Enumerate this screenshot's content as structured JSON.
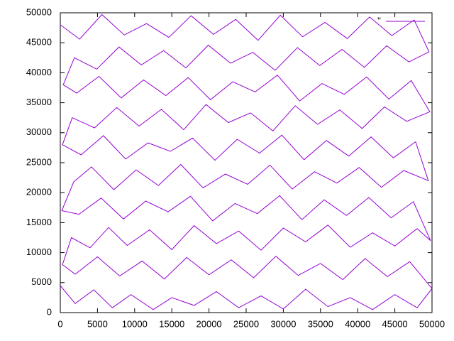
{
  "chart_data": {
    "type": "line",
    "x": [
      0,
      2000,
      4500,
      7000,
      9500,
      12500,
      15000,
      18000,
      21000,
      24000,
      27000,
      30000,
      33000,
      36000,
      39000,
      42000,
      45000,
      48000,
      50000,
      47000,
      44000,
      41000,
      38000,
      35000,
      32000,
      29000,
      26000,
      23000,
      20000,
      17000,
      14000,
      11000,
      8000,
      5000,
      2000,
      300,
      1500,
      4000,
      6500,
      9000,
      12000,
      15000,
      18000,
      21000,
      24000,
      27000,
      30000,
      33000,
      36000,
      39000,
      42000,
      45000,
      48000,
      49800,
      47500,
      44500,
      41500,
      38500,
      35500,
      32500,
      29500,
      26500,
      23500,
      20500,
      17500,
      14500,
      11500,
      8500,
      5500,
      2500,
      200,
      1800,
      4200,
      7200,
      10200,
      13200,
      16200,
      19200,
      22200,
      25200,
      28200,
      31200,
      34200,
      37200,
      40200,
      43200,
      46200,
      49500,
      47800,
      44800,
      41800,
      38800,
      35800,
      32800,
      29800,
      26800,
      23800,
      20800,
      17800,
      14800,
      11800,
      8800,
      5800,
      2800,
      300,
      1600,
      4600,
      7600,
      10600,
      13600,
      16600,
      19600,
      22600,
      25600,
      28600,
      31600,
      34600,
      37600,
      40600,
      43600,
      46600,
      49700,
      47200,
      44200,
      41200,
      38200,
      35200,
      32200,
      29200,
      26200,
      23200,
      20200,
      17200,
      14200,
      11200,
      8200,
      5200,
      2200,
      400,
      1900,
      4900,
      7900,
      10900,
      13900,
      16900,
      19900,
      22900,
      25900,
      28900,
      31900,
      34900,
      37900,
      40900,
      43900,
      46900,
      49600,
      47600,
      44600,
      41600,
      38600,
      35600,
      32600,
      29600,
      26600,
      23600,
      20600,
      17600,
      14600,
      11600,
      8600,
      5600,
      2600,
      0
    ],
    "series": [
      {
        "name": "''",
        "color": "#9400d3",
        "values": [
          4500,
          1500,
          3800,
          800,
          3000,
          500,
          2500,
          1200,
          3500,
          800,
          2800,
          600,
          3900,
          1000,
          2500,
          500,
          3000,
          800,
          4000,
          8500,
          6000,
          9000,
          5500,
          8200,
          6200,
          9400,
          5800,
          8800,
          6300,
          9200,
          5600,
          8600,
          6100,
          9300,
          6400,
          8000,
          12500,
          10800,
          14200,
          11200,
          13800,
          10500,
          14500,
          11500,
          13600,
          10400,
          14100,
          11800,
          14600,
          10900,
          13300,
          11100,
          14000,
          12000,
          18500,
          15800,
          19200,
          16200,
          18800,
          15500,
          19500,
          16500,
          18200,
          15300,
          19400,
          16800,
          18600,
          15600,
          19100,
          16400,
          17000,
          21800,
          24300,
          20500,
          23800,
          21200,
          24700,
          20800,
          23100,
          21400,
          24600,
          20600,
          23500,
          21600,
          24200,
          20900,
          23700,
          22000,
          28500,
          25800,
          29300,
          26100,
          28700,
          25500,
          29600,
          26600,
          28900,
          25400,
          29100,
          26900,
          28300,
          25600,
          29500,
          26300,
          28000,
          32500,
          30800,
          34200,
          31100,
          33900,
          30500,
          34700,
          31700,
          33300,
          30300,
          34500,
          31400,
          33800,
          30700,
          34300,
          31900,
          33500,
          38700,
          35600,
          39300,
          36400,
          38200,
          35300,
          39600,
          36800,
          38500,
          35500,
          39200,
          36200,
          38800,
          35800,
          39400,
          36600,
          38000,
          42500,
          40600,
          44300,
          41300,
          43700,
          40800,
          44600,
          41600,
          43400,
          40400,
          44200,
          41200,
          43900,
          40900,
          44500,
          41800,
          43500,
          48800,
          46200,
          49300,
          45700,
          48400,
          46000,
          49600,
          45400,
          48900,
          46400,
          49500,
          45900,
          48200,
          46300,
          49700,
          45600,
          48000
        ]
      }
    ],
    "xlim": [
      0,
      50000
    ],
    "ylim": [
      0,
      50000
    ],
    "xticks": [
      0,
      5000,
      10000,
      15000,
      20000,
      25000,
      30000,
      35000,
      40000,
      45000,
      50000
    ],
    "yticks": [
      0,
      5000,
      10000,
      15000,
      20000,
      25000,
      30000,
      35000,
      40000,
      45000,
      50000
    ],
    "grid": false,
    "legend": "top-right"
  }
}
